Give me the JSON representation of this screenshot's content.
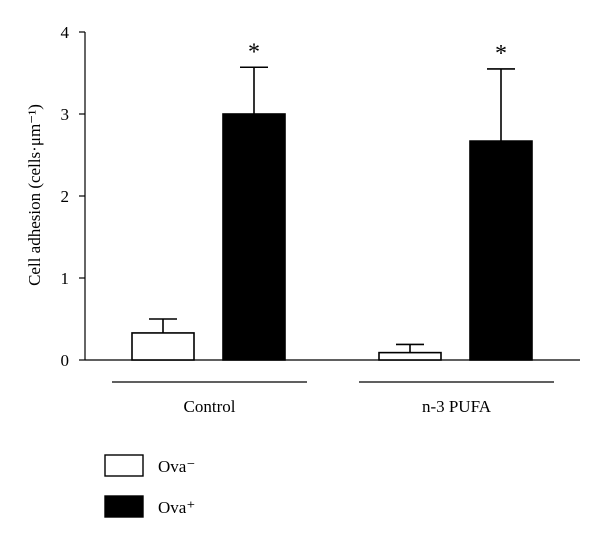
{
  "chart_data": {
    "type": "bar",
    "ylabel": "Cell adhesion (cells·μm⁻¹)",
    "ylim": [
      0,
      4
    ],
    "yticks": [
      "0",
      "1",
      "2",
      "3",
      "4"
    ],
    "categories": [
      "Control",
      "n-3 PUFA"
    ],
    "series": [
      {
        "name": "Ova⁻",
        "values": [
          0.33,
          0.09
        ],
        "errors": [
          0.17,
          0.1
        ],
        "color": "#ffffff",
        "significance": [
          "",
          ""
        ]
      },
      {
        "name": "Ova⁺",
        "values": [
          3.0,
          2.67
        ],
        "errors": [
          0.57,
          0.88
        ],
        "color": "#000000",
        "significance": [
          "*",
          "*"
        ]
      }
    ],
    "legend_position": "bottom-left",
    "grid": false
  }
}
